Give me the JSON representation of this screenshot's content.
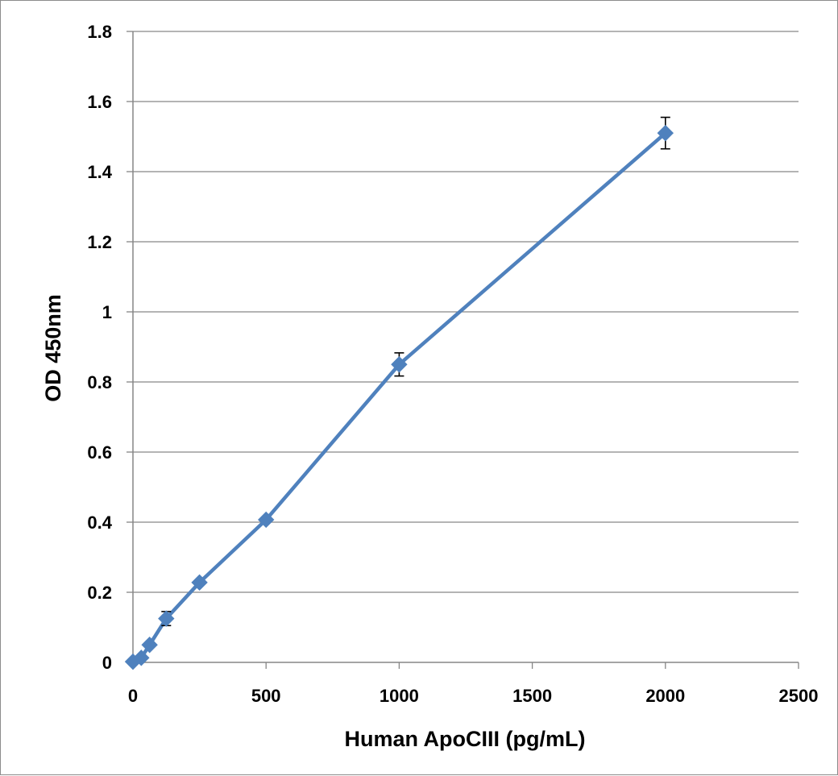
{
  "chart_data": {
    "type": "scatter",
    "mode": "lines+markers",
    "title": "",
    "xlabel": "Human ApoCIII (pg/mL)",
    "ylabel": "OD 450nm",
    "xlim": [
      0,
      2500
    ],
    "ylim": [
      0,
      1.8
    ],
    "x_ticks": [
      0,
      500,
      1000,
      1500,
      2000,
      2500
    ],
    "x_tick_labels": [
      "0",
      "500",
      "1000",
      "1500",
      "2000",
      "2500"
    ],
    "y_ticks": [
      0,
      0.2,
      0.4,
      0.6,
      0.8,
      1,
      1.2,
      1.4,
      1.6,
      1.8
    ],
    "y_tick_labels": [
      "0",
      "0.2",
      "0.4",
      "0.6",
      "0.8",
      "1",
      "1.2",
      "1.4",
      "1.6",
      "1.8"
    ],
    "grid": "horizontal",
    "legend": "none",
    "series": [
      {
        "x": [
          0,
          31.25,
          62.5,
          125,
          250,
          500,
          1000,
          2000
        ],
        "y": [
          0.002,
          0.013,
          0.05,
          0.125,
          0.228,
          0.407,
          0.85,
          1.51
        ],
        "error": [
          0,
          0.004,
          0.004,
          0.02,
          0.006,
          0.006,
          0.033,
          0.045
        ],
        "color": "#4f81bd",
        "marker": "diamond"
      }
    ]
  }
}
